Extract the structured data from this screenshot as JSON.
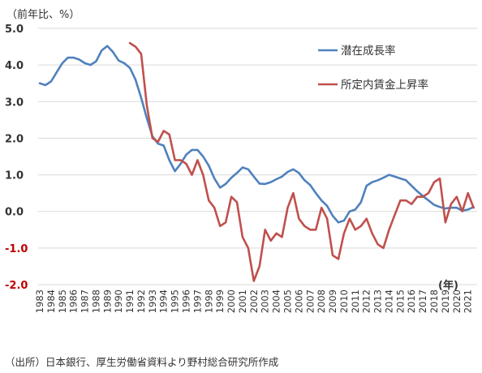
{
  "chart_data": {
    "type": "line",
    "unit_label": "（前年比、%）",
    "x_unit": "(年)",
    "source": "（出所）日本銀行、厚生労働省資料より野村総合研究所作成",
    "ylim": [
      -2.0,
      5.0
    ],
    "y_ticks": [
      "5.0",
      "4.0",
      "3.0",
      "2.0",
      "1.0",
      "0.0",
      "-1.0",
      "-2.0"
    ],
    "y_tick_values": [
      5,
      4,
      3,
      2,
      1,
      0,
      -1,
      -2
    ],
    "negative_tick_color": "#c00000",
    "x_ticks": [
      "1983",
      "1984",
      "1985",
      "1986",
      "1987",
      "1988",
      "1989",
      "1990",
      "1991",
      "1992",
      "1993",
      "1994",
      "1995",
      "1996",
      "1997",
      "1998",
      "1999",
      "2000",
      "2001",
      "2002",
      "2003",
      "2004",
      "2005",
      "2006",
      "2007",
      "2008",
      "2009",
      "2010",
      "2011",
      "2012",
      "2013",
      "2014",
      "2015",
      "2016",
      "2017",
      "2018",
      "2019",
      "2020",
      "2021"
    ],
    "xlim": [
      1983,
      2021.6
    ],
    "grid": "horizontal",
    "legend_placement": "top-right",
    "series": [
      {
        "name": "潜在成長率",
        "color": "#4f81bd",
        "x": [
          1983,
          1983.5,
          1984,
          1984.5,
          1985,
          1985.5,
          1986,
          1986.5,
          1987,
          1987.5,
          1988,
          1988.5,
          1989,
          1989.5,
          1990,
          1990.5,
          1991,
          1991.5,
          1992,
          1992.5,
          1993,
          1993.5,
          1994,
          1994.5,
          1995,
          1995.5,
          1996,
          1996.5,
          1997,
          1997.5,
          1998,
          1998.5,
          1999,
          1999.5,
          2000,
          2000.5,
          2001,
          2001.5,
          2002,
          2002.5,
          2003,
          2003.5,
          2004,
          2004.5,
          2005,
          2005.5,
          2006,
          2006.5,
          2007,
          2007.5,
          2008,
          2008.5,
          2009,
          2009.5,
          2010,
          2010.5,
          2011,
          2011.5,
          2012,
          2012.5,
          2013,
          2013.5,
          2014,
          2014.5,
          2015,
          2015.5,
          2016,
          2016.5,
          2017,
          2017.5,
          2018,
          2018.5,
          2019,
          2019.5,
          2020,
          2020.5,
          2021,
          2021.5
        ],
        "values": [
          3.5,
          3.45,
          3.55,
          3.8,
          4.05,
          4.2,
          4.2,
          4.15,
          4.05,
          4.0,
          4.1,
          4.4,
          4.52,
          4.35,
          4.12,
          4.05,
          3.92,
          3.6,
          3.1,
          2.55,
          2.05,
          1.85,
          1.8,
          1.4,
          1.1,
          1.3,
          1.55,
          1.68,
          1.68,
          1.5,
          1.25,
          0.9,
          0.65,
          0.75,
          0.92,
          1.05,
          1.2,
          1.15,
          0.95,
          0.76,
          0.75,
          0.8,
          0.88,
          0.95,
          1.08,
          1.15,
          1.05,
          0.85,
          0.72,
          0.5,
          0.3,
          0.15,
          -0.12,
          -0.3,
          -0.25,
          0.0,
          0.05,
          0.25,
          0.7,
          0.8,
          0.85,
          0.92,
          1.0,
          0.95,
          0.9,
          0.85,
          0.7,
          0.55,
          0.42,
          0.3,
          0.18,
          0.12,
          0.08,
          0.1,
          0.1,
          0.02,
          0.05,
          0.12
        ]
      },
      {
        "name": "所定内賃金上昇率",
        "color": "#c0504d",
        "x": [
          1991,
          1991.5,
          1992,
          1992.5,
          1993,
          1993.5,
          1994,
          1994.5,
          1995,
          1995.5,
          1996,
          1996.5,
          1997,
          1997.5,
          1998,
          1998.5,
          1999,
          1999.5,
          2000,
          2000.5,
          2001,
          2001.5,
          2002,
          2002.5,
          2003,
          2003.5,
          2004,
          2004.5,
          2005,
          2005.5,
          2006,
          2006.5,
          2007,
          2007.5,
          2008,
          2008.5,
          2009,
          2009.5,
          2010,
          2010.5,
          2011,
          2011.5,
          2012,
          2012.5,
          2013,
          2013.5,
          2014,
          2014.5,
          2015,
          2015.5,
          2016,
          2016.5,
          2017,
          2017.5,
          2018,
          2018.5,
          2019,
          2019.5,
          2020,
          2020.5,
          2021,
          2021.5
        ],
        "values": [
          4.6,
          4.5,
          4.3,
          2.9,
          2.0,
          1.9,
          2.2,
          2.1,
          1.4,
          1.4,
          1.3,
          1.0,
          1.4,
          1.0,
          0.3,
          0.1,
          -0.4,
          -0.3,
          0.4,
          0.25,
          -0.7,
          -1.0,
          -1.9,
          -1.5,
          -0.5,
          -0.8,
          -0.6,
          -0.7,
          0.1,
          0.5,
          -0.2,
          -0.4,
          -0.5,
          -0.5,
          0.1,
          -0.2,
          -1.2,
          -1.3,
          -0.6,
          -0.2,
          -0.5,
          -0.4,
          -0.2,
          -0.6,
          -0.9,
          -1.0,
          -0.5,
          -0.1,
          0.3,
          0.3,
          0.2,
          0.4,
          0.4,
          0.5,
          0.8,
          0.9,
          -0.3,
          0.2,
          0.4,
          0.0,
          0.5,
          0.1
        ]
      }
    ]
  }
}
